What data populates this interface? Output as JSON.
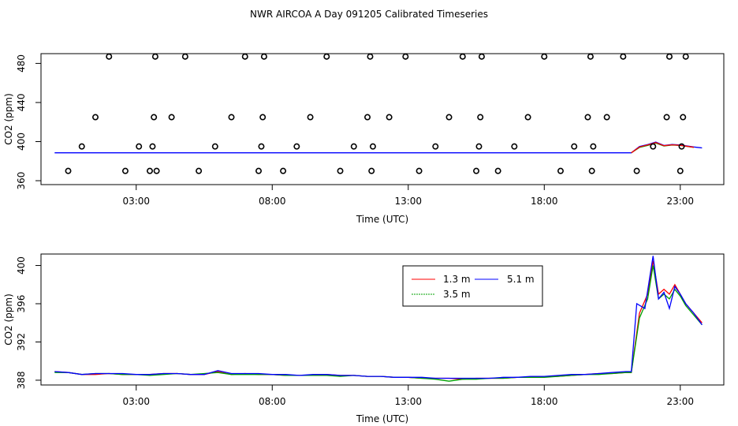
{
  "figure_title": "NWR AIRCOA A  Day 091205  Calibrated Timeseries",
  "chart_data": [
    {
      "type": "line",
      "panel": "top",
      "xlabel": "Time (UTC)",
      "ylabel": "CO2 (ppm)",
      "x_ticks": [
        3,
        8,
        13,
        18,
        23
      ],
      "x_tick_labels": [
        "03:00",
        "08:00",
        "13:00",
        "18:00",
        "23:00"
      ],
      "xlim": [
        -0.5,
        24.6
      ],
      "y_ticks": [
        360,
        400,
        440,
        480
      ],
      "ylim": [
        356,
        490
      ],
      "grid": false,
      "line_series": [
        {
          "color": "#0000ff",
          "x": [
            0,
            21.2,
            21.5,
            21.8,
            22.1,
            22.4,
            22.7,
            23.0,
            23.5,
            23.8
          ],
          "y": [
            388.5,
            388.5,
            395,
            397,
            399.5,
            396,
            397,
            396.5,
            394.5,
            393.5
          ]
        },
        {
          "color": "#00a000",
          "x": [
            21.2,
            21.5,
            21.8,
            22.1,
            22.4,
            22.7,
            23.0,
            23.5
          ],
          "y": [
            388.5,
            394,
            396,
            398.5,
            395.5,
            396.5,
            396,
            394
          ]
        },
        {
          "color": "#ff0000",
          "x": [
            21.2,
            21.5,
            21.8,
            22.1,
            22.4,
            22.7,
            23.0,
            23.5
          ],
          "y": [
            388.5,
            394.5,
            396.5,
            399,
            395.8,
            396.7,
            396.2,
            394.2
          ]
        }
      ],
      "markers": {
        "symbol": "open-circle",
        "x": [
          0.5,
          1.0,
          1.5,
          2.0,
          2.6,
          3.1,
          3.5,
          3.6,
          3.65,
          3.7,
          3.75,
          4.3,
          4.8,
          5.3,
          5.9,
          6.5,
          7.0,
          7.5,
          7.6,
          7.65,
          7.7,
          8.4,
          8.9,
          9.4,
          10.0,
          10.5,
          11.0,
          11.5,
          11.6,
          11.65,
          11.7,
          12.3,
          12.9,
          13.4,
          14.0,
          14.5,
          15.0,
          15.5,
          15.6,
          15.65,
          15.7,
          16.3,
          16.9,
          17.4,
          18.0,
          18.6,
          19.1,
          19.6,
          19.7,
          19.75,
          19.8,
          20.3,
          20.9,
          21.4,
          22.0,
          22.5,
          22.6,
          23.0,
          23.05,
          23.1,
          23.2
        ],
        "y": [
          370,
          395,
          425,
          487,
          370,
          395,
          370,
          395,
          425,
          487,
          370,
          425,
          487,
          370,
          395,
          425,
          487,
          370,
          395,
          425,
          487,
          370,
          395,
          425,
          487,
          370,
          395,
          425,
          487,
          370,
          395,
          425,
          487,
          370,
          395,
          425,
          487,
          370,
          395,
          425,
          487,
          370,
          395,
          425,
          487,
          370,
          395,
          425,
          487,
          370,
          395,
          425,
          487,
          370,
          395,
          425,
          487,
          370,
          395,
          425,
          487
        ]
      }
    },
    {
      "type": "line",
      "panel": "bottom",
      "xlabel": "Time (UTC)",
      "ylabel": "CO2 (ppm)",
      "x_ticks": [
        3,
        8,
        13,
        18,
        23
      ],
      "x_tick_labels": [
        "03:00",
        "08:00",
        "13:00",
        "18:00",
        "23:00"
      ],
      "xlim": [
        -0.5,
        24.6
      ],
      "y_ticks": [
        388,
        392,
        396,
        400
      ],
      "ylim": [
        387.5,
        401.2
      ],
      "grid": false,
      "legend_position": "top-right",
      "series": [
        {
          "name": "1.3 m",
          "color": "#ff0000",
          "x": [
            0,
            0.5,
            1,
            1.5,
            2,
            2.5,
            3,
            3.5,
            4,
            4.5,
            5,
            5.5,
            6,
            6.5,
            7,
            7.5,
            8,
            8.5,
            9,
            9.5,
            10,
            10.5,
            11,
            11.5,
            12,
            12.5,
            13,
            13.5,
            14,
            14.5,
            15,
            15.5,
            16,
            16.5,
            17,
            17.5,
            18,
            18.5,
            19,
            19.5,
            20,
            20.5,
            21,
            21.2,
            21.5,
            21.8,
            22.0,
            22.2,
            22.4,
            22.6,
            22.8,
            23.0,
            23.2,
            23.5,
            23.8
          ],
          "y": [
            388.9,
            388.8,
            388.6,
            388.6,
            388.7,
            388.6,
            388.6,
            388.6,
            388.7,
            388.7,
            388.6,
            388.6,
            388.9,
            388.6,
            388.7,
            388.6,
            388.6,
            388.5,
            388.5,
            388.5,
            388.6,
            388.5,
            388.5,
            388.4,
            388.4,
            388.3,
            388.3,
            388.2,
            388.2,
            388.2,
            388.1,
            388.2,
            388.2,
            388.2,
            388.3,
            388.3,
            388.4,
            388.4,
            388.5,
            388.6,
            388.7,
            388.7,
            388.8,
            388.8,
            395,
            397,
            400.5,
            397,
            397.5,
            397,
            398,
            397,
            396,
            395,
            394
          ]
        },
        {
          "name": "3.5 m",
          "color": "#00a000",
          "x": [
            0,
            0.5,
            1,
            1.5,
            2,
            2.5,
            3,
            3.5,
            4,
            4.5,
            5,
            5.5,
            6,
            6.5,
            7,
            7.5,
            8,
            8.5,
            9,
            9.5,
            10,
            10.5,
            11,
            11.5,
            12,
            12.5,
            13,
            13.5,
            14,
            14.5,
            15,
            15.5,
            16,
            16.5,
            17,
            17.5,
            18,
            18.5,
            19,
            19.5,
            20,
            20.5,
            21,
            21.2,
            21.5,
            21.8,
            22.0,
            22.2,
            22.4,
            22.6,
            22.8,
            23.0,
            23.2,
            23.5,
            23.8
          ],
          "y": [
            388.8,
            388.8,
            388.6,
            388.7,
            388.7,
            388.6,
            388.6,
            388.5,
            388.6,
            388.7,
            388.6,
            388.7,
            388.8,
            388.6,
            388.6,
            388.6,
            388.6,
            388.5,
            388.5,
            388.5,
            388.5,
            388.4,
            388.5,
            388.4,
            388.4,
            388.3,
            388.3,
            388.2,
            388.1,
            387.9,
            388.1,
            388.1,
            388.2,
            388.2,
            388.3,
            388.3,
            388.3,
            388.4,
            388.5,
            388.6,
            388.6,
            388.7,
            388.8,
            388.8,
            394.5,
            396.5,
            400,
            396.5,
            397,
            396.5,
            397.5,
            396.8,
            395.8,
            394.8,
            393.8
          ]
        },
        {
          "name": "5.1 m",
          "color": "#0000ff",
          "x": [
            0,
            0.5,
            1,
            1.5,
            2,
            2.5,
            3,
            3.5,
            4,
            4.5,
            5,
            5.5,
            6,
            6.5,
            7,
            7.5,
            8,
            8.5,
            9,
            9.5,
            10,
            10.5,
            11,
            11.5,
            12,
            12.5,
            13,
            13.5,
            14,
            14.5,
            15,
            15.5,
            16,
            16.5,
            17,
            17.5,
            18,
            18.5,
            19,
            19.5,
            20,
            20.5,
            21,
            21.2,
            21.4,
            21.7,
            22.0,
            22.2,
            22.4,
            22.6,
            22.8,
            23.0,
            23.2,
            23.5,
            23.8
          ],
          "y": [
            388.9,
            388.8,
            388.6,
            388.7,
            388.7,
            388.7,
            388.6,
            388.6,
            388.7,
            388.7,
            388.6,
            388.6,
            389.0,
            388.7,
            388.7,
            388.7,
            388.6,
            388.6,
            388.5,
            388.6,
            388.6,
            388.5,
            388.5,
            388.4,
            388.4,
            388.3,
            388.3,
            388.3,
            388.2,
            388.2,
            388.2,
            388.2,
            388.2,
            388.3,
            388.3,
            388.4,
            388.4,
            388.5,
            388.6,
            388.6,
            388.7,
            388.8,
            388.9,
            388.9,
            396,
            395.5,
            401,
            396.5,
            397.2,
            395.5,
            397.8,
            397,
            396,
            395,
            393.8
          ]
        }
      ]
    }
  ]
}
